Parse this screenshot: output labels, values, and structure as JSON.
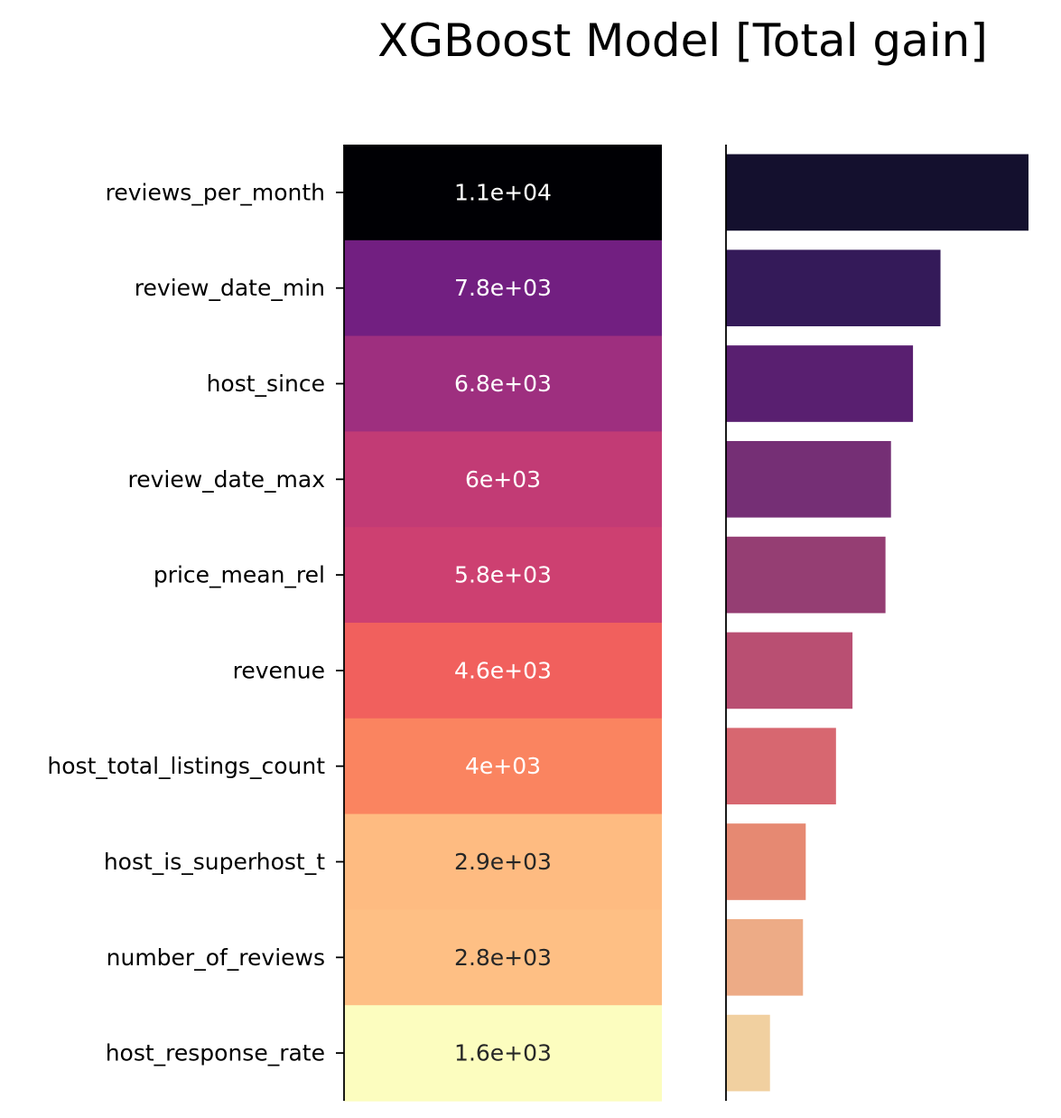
{
  "chart_data": {
    "type": "heatmap",
    "title": "XGBoost Model [Total gain]",
    "features": [
      "reviews_per_month",
      "review_date_min",
      "host_since",
      "review_date_max",
      "price_mean_rel",
      "revenue",
      "host_total_listings_count",
      "host_is_superhost_t",
      "number_of_reviews",
      "host_response_rate"
    ],
    "values": [
      11000,
      7800,
      6800,
      6000,
      5800,
      4600,
      4000,
      2900,
      2800,
      1600
    ],
    "value_labels": [
      "1.1e+04",
      "7.8e+03",
      "6.8e+03",
      "6e+03",
      "5.8e+03",
      "4.6e+03",
      "4e+03",
      "2.9e+03",
      "2.8e+03",
      "1.6e+03"
    ],
    "heatmap_colors": [
      "#000004",
      "#721f81",
      "#9e2f7f",
      "#c23b75",
      "#cd4071",
      "#f1605d",
      "#fa8460",
      "#febb81",
      "#febf84",
      "#fcfdbf"
    ],
    "label_colors": [
      "#ffffff",
      "#ffffff",
      "#ffffff",
      "#ffffff",
      "#ffffff",
      "#ffffff",
      "#ffffff",
      "#262626",
      "#262626",
      "#262626"
    ],
    "bar_colors": [
      "#14102e",
      "#341a59",
      "#591f70",
      "#752f75",
      "#953e73",
      "#b94f72",
      "#d76770",
      "#e68972",
      "#edab86",
      "#f1d0a0"
    ],
    "bar_xlim": [
      0,
      11000
    ],
    "grid": false,
    "legend": "none"
  }
}
